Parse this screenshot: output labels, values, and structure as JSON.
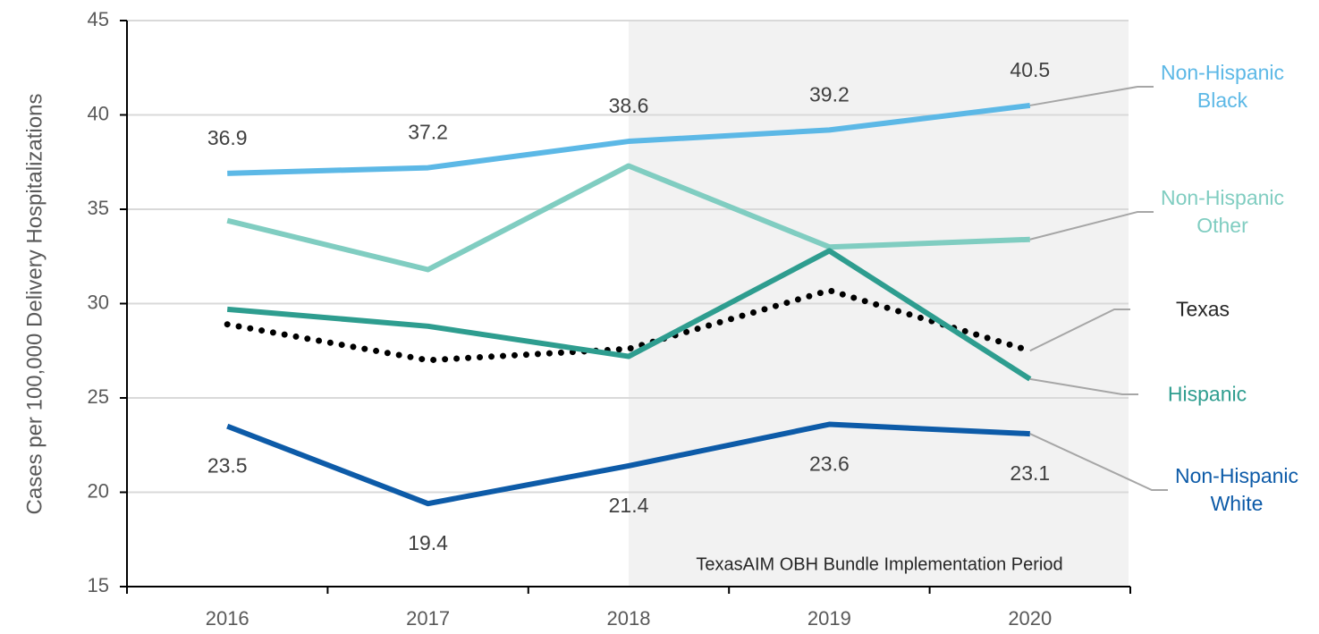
{
  "chart_data": {
    "type": "line",
    "y_label": "Cases per 100,000 Delivery Hospitalizations",
    "annotation": "TexasAIM OBH Bundle Implementation Period",
    "shaded_from": "2018",
    "categories": [
      "2016",
      "2017",
      "2018",
      "2019",
      "2020"
    ],
    "ylim": [
      15,
      45
    ],
    "yticks": [
      15,
      20,
      25,
      30,
      35,
      40,
      45
    ],
    "grid": true,
    "legend": "right",
    "series": [
      {
        "name": "Non-Hispanic Black",
        "color": "#5cb8e6",
        "values": [
          36.9,
          37.2,
          38.6,
          39.2,
          40.5
        ],
        "show_labels": "above"
      },
      {
        "name": "Non-Hispanic Other",
        "color": "#80cdc1",
        "values": [
          34.4,
          31.8,
          37.3,
          33.0,
          33.4
        ]
      },
      {
        "name": "Texas",
        "color": "#000000",
        "text_color": "#262626",
        "dash": "dotted",
        "values": [
          28.9,
          27.0,
          27.6,
          30.7,
          27.5
        ]
      },
      {
        "name": "Hispanic",
        "color": "#2e9d8f",
        "values": [
          29.7,
          28.8,
          27.2,
          32.8,
          26.0
        ]
      },
      {
        "name": "Non-Hispanic White",
        "color": "#0d5ba8",
        "values": [
          23.5,
          19.4,
          21.4,
          23.6,
          23.1
        ],
        "show_labels": "below"
      }
    ]
  }
}
